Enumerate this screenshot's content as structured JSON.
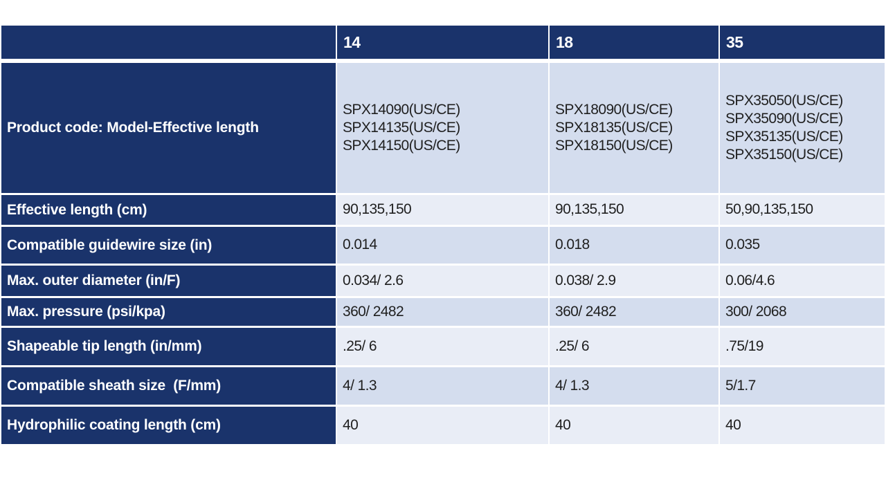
{
  "colors": {
    "navy": "#1a336b",
    "rowDark": "#d4ddee",
    "rowLight": "#e9edf6",
    "dataText": "#1f1f1f",
    "gridLine": "#ffffff"
  },
  "table": {
    "header": {
      "corner": "",
      "cols": [
        "14",
        "18",
        "35"
      ]
    },
    "rows": [
      {
        "label": "Product code: Model-Effective length",
        "values": [
          "SPX14090(US/CE)\nSPX14135(US/CE)\nSPX14150(US/CE)",
          "SPX18090(US/CE)\nSPX18135(US/CE)\nSPX18150(US/CE)",
          "SPX35050(US/CE)\nSPX35090(US/CE)\nSPX35135(US/CE)\nSPX35150(US/CE)"
        ]
      },
      {
        "label": "Effective length (cm)",
        "values": [
          "90,135,150",
          "90,135,150",
          "50,90,135,150"
        ]
      },
      {
        "label": "Compatible guidewire size (in)",
        "values": [
          "0.014",
          "0.018",
          "0.035"
        ]
      },
      {
        "label": "Max. outer diameter (in/F)",
        "values": [
          "0.034/ 2.6",
          "0.038/ 2.9",
          "0.06/4.6"
        ]
      },
      {
        "label": "Max. pressure (psi/kpa)",
        "values": [
          "360/ 2482",
          "360/ 2482",
          "300/ 2068"
        ]
      },
      {
        "label": "Shapeable tip length (in/mm)",
        "values": [
          ".25/ 6",
          ".25/ 6",
          ".75/19"
        ]
      },
      {
        "label": "Compatible sheath size  (F/mm)",
        "values": [
          "4/ 1.3",
          "4/ 1.3",
          "5/1.7"
        ]
      },
      {
        "label": "Hydrophilic coating length (cm)",
        "values": [
          "40",
          "40",
          "40"
        ]
      }
    ]
  }
}
